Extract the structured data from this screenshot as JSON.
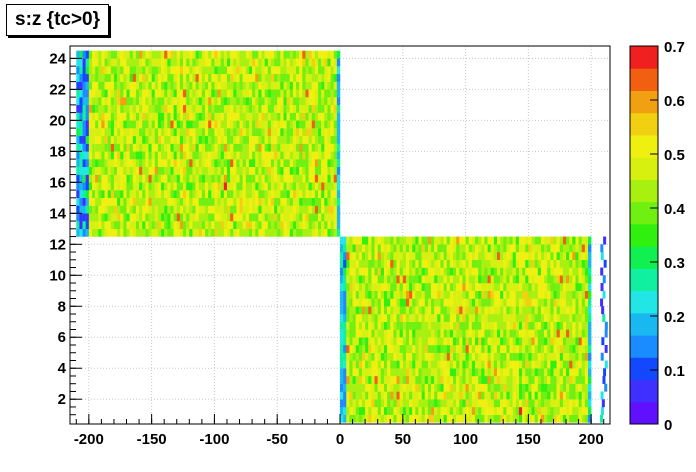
{
  "chart_data": {
    "type": "heatmap",
    "title": "s:z {tc>0}",
    "xlabel": "",
    "ylabel": "",
    "xlim": [
      -215,
      215
    ],
    "ylim": [
      0.4,
      24.8
    ],
    "x_ticks": [
      -200,
      -150,
      -100,
      -50,
      0,
      50,
      100,
      150,
      200
    ],
    "y_ticks": [
      2,
      4,
      6,
      8,
      10,
      12,
      14,
      16,
      18,
      20,
      22,
      24
    ],
    "color_scale": {
      "min": 0,
      "max": 0.7,
      "tick_labels": [
        "0",
        "0.1",
        "0.2",
        "0.3",
        "0.4",
        "0.5",
        "0.6",
        "0.7"
      ],
      "colors": [
        "#6010ff",
        "#4030ff",
        "#1448ff",
        "#1a8cff",
        "#1ab8f0",
        "#22e6e6",
        "#10f0a0",
        "#10f050",
        "#30f010",
        "#70f010",
        "#a8f010",
        "#d8f010",
        "#f0f010",
        "#f0d010",
        "#f0a010",
        "#f06010",
        "#f02020"
      ]
    },
    "regions": [
      {
        "name": "upper-block",
        "s_range": [
          13,
          24
        ],
        "z_range": [
          -210,
          0
        ],
        "typical_value": 0.45,
        "edge_values": "low (0.05-0.25) near z=-205 and z=0"
      },
      {
        "name": "lower-block",
        "s_range": [
          1,
          12
        ],
        "z_range": [
          0,
          200
        ],
        "typical_value": 0.45,
        "edge_values": "low (0.05-0.25) near z=0 and z=198-208"
      }
    ],
    "grid": true
  }
}
